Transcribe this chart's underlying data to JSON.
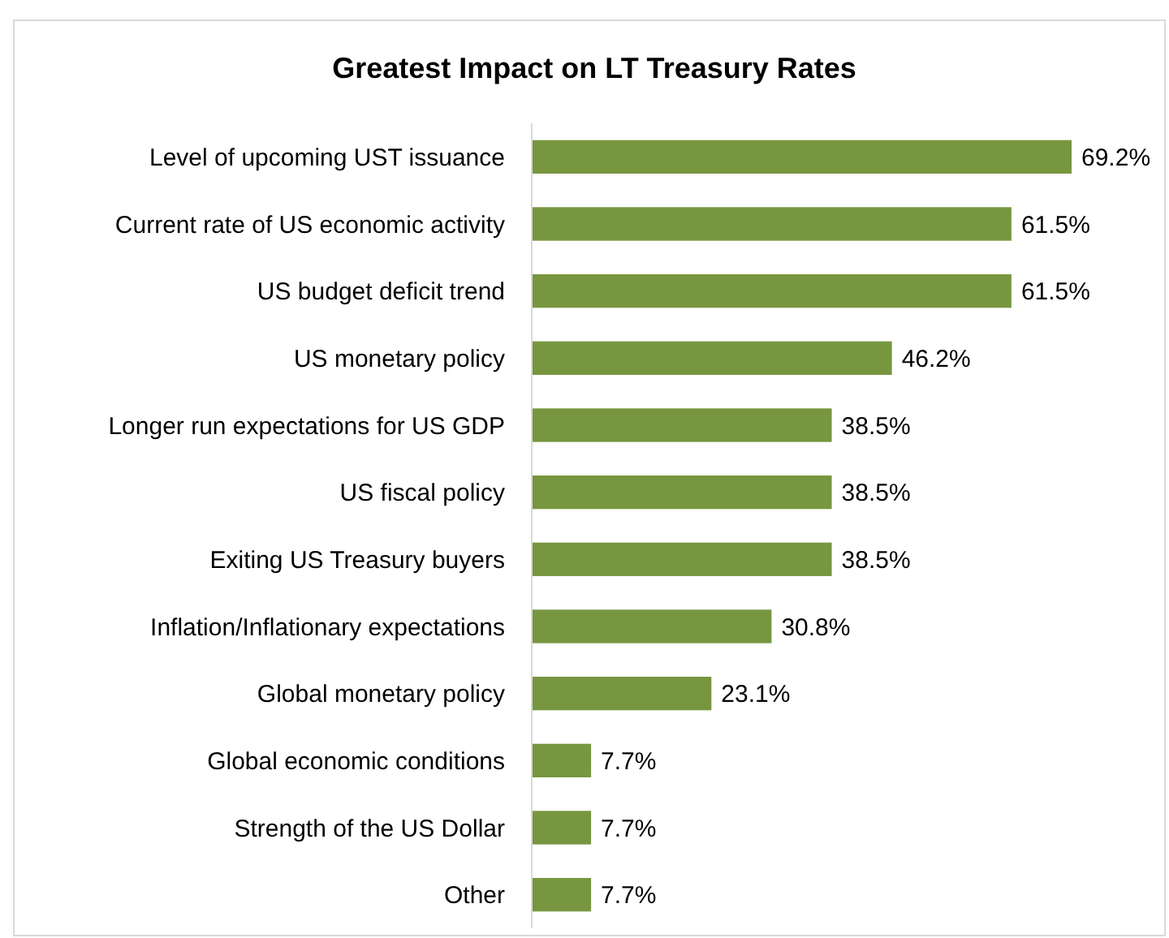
{
  "chart_data": {
    "type": "bar",
    "orientation": "horizontal",
    "title": "Greatest Impact on LT Treasury Rates",
    "categories": [
      "Level of upcoming UST issuance",
      "Current rate of US economic activity",
      "US budget deficit trend",
      "US monetary policy",
      "Longer run expectations for US GDP",
      "US fiscal policy",
      "Exiting US Treasury buyers",
      "Inflation/Inflationary expectations",
      "Global monetary policy",
      "Global economic conditions",
      "Strength of the US Dollar",
      "Other"
    ],
    "values": [
      69.2,
      61.5,
      61.5,
      46.2,
      38.5,
      38.5,
      38.5,
      30.8,
      23.1,
      7.7,
      7.7,
      7.7
    ],
    "value_labels": [
      "69.2%",
      "61.5%",
      "61.5%",
      "46.2%",
      "38.5%",
      "38.5%",
      "38.5%",
      "30.8%",
      "23.1%",
      "7.7%",
      "7.7%",
      "7.7%"
    ],
    "color": "#77963f"
  }
}
